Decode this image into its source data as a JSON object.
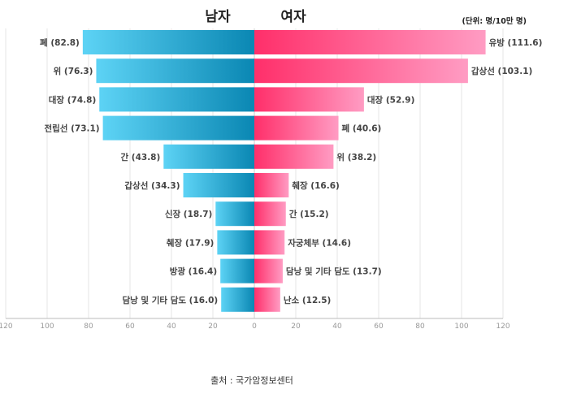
{
  "chart_data": {
    "type": "bar",
    "orientation": "horizontal-population-pyramid",
    "headers": {
      "left": "남자",
      "right": "여자"
    },
    "unit": "(단위: 명/10만 명)",
    "source": "출처 : 국가암정보센터",
    "x_range": [
      -120,
      120
    ],
    "x_ticks": [
      "120",
      "100",
      "80",
      "60",
      "40",
      "20",
      "0",
      "20",
      "40",
      "60",
      "80",
      "100",
      "120"
    ],
    "grid": true,
    "series": [
      {
        "name": "남자",
        "side": "left",
        "labels": [
          "폐 (82.8)",
          "위 (76.3)",
          "대장 (74.8)",
          "전립선 (73.1)",
          "간 (43.8)",
          "갑상선 (34.3)",
          "신장 (18.7)",
          "췌장 (17.9)",
          "방광 (16.4)",
          "담낭 및 기타 담도 (16.0)"
        ],
        "categories": [
          "폐",
          "위",
          "대장",
          "전립선",
          "간",
          "갑상선",
          "신장",
          "췌장",
          "방광",
          "담낭 및 기타 담도"
        ],
        "values": [
          82.8,
          76.3,
          74.8,
          73.1,
          43.8,
          34.3,
          18.7,
          17.9,
          16.4,
          16.0
        ]
      },
      {
        "name": "여자",
        "side": "right",
        "labels": [
          "유방 (111.6)",
          "갑상선 (103.1)",
          "대장 (52.9)",
          "폐 (40.6)",
          "위 (38.2)",
          "췌장 (16.6)",
          "간 (15.2)",
          "자궁체부 (14.6)",
          "담낭 및 기타 담도 (13.7)",
          "난소 (12.5)"
        ],
        "categories": [
          "유방",
          "갑상선",
          "대장",
          "폐",
          "위",
          "췌장",
          "간",
          "자궁체부",
          "담낭 및 기타 담도",
          "난소"
        ],
        "values": [
          111.6,
          103.1,
          52.9,
          40.6,
          38.2,
          16.6,
          15.2,
          14.6,
          13.7,
          12.5
        ]
      }
    ],
    "colors": {
      "male_light": "#5dd3f5",
      "male_dark": "#0a87b3",
      "female_dark": "#ff2f6a",
      "female_light": "#ff9cc3",
      "grid": "#e4e4e4",
      "axis": "#bbbbbb"
    }
  }
}
